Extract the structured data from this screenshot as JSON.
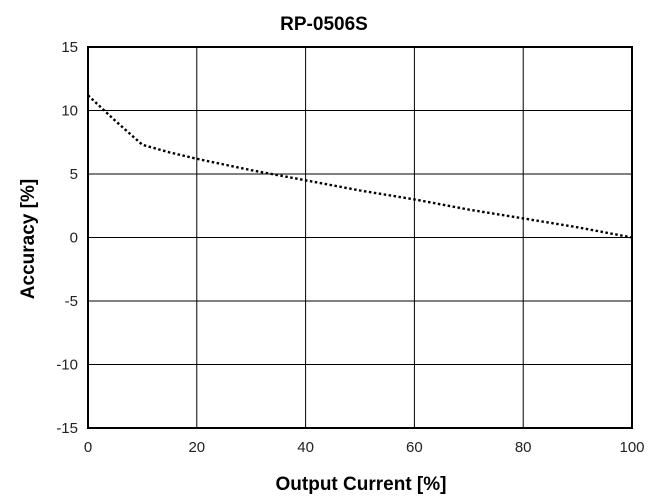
{
  "chart_data": {
    "type": "line",
    "title": "RP-0506S",
    "xlabel": "Output Current [%]",
    "ylabel": "Accuracy [%]",
    "xlim": [
      0,
      100
    ],
    "ylim": [
      -15,
      15
    ],
    "xticks": [
      0,
      20,
      40,
      60,
      80,
      100
    ],
    "yticks": [
      15,
      10,
      5,
      0,
      -5,
      -10,
      -15
    ],
    "grid": true,
    "series": [
      {
        "x": [
          0,
          5,
          10,
          15,
          20,
          30,
          40,
          50,
          60,
          70,
          80,
          90,
          100
        ],
        "y": [
          11.2,
          9.2,
          7.3,
          6.7,
          6.2,
          5.3,
          4.5,
          3.7,
          3.0,
          2.2,
          1.5,
          0.8,
          0.0
        ],
        "style": "dotted",
        "color": "#000000"
      }
    ]
  }
}
